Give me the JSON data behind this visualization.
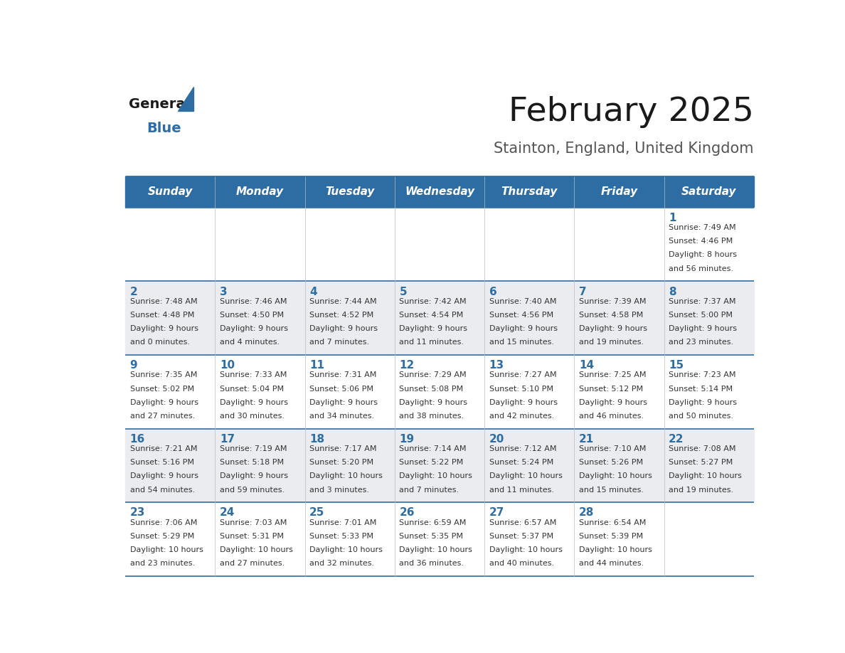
{
  "title": "February 2025",
  "subtitle": "Stainton, England, United Kingdom",
  "days_of_week": [
    "Sunday",
    "Monday",
    "Tuesday",
    "Wednesday",
    "Thursday",
    "Friday",
    "Saturday"
  ],
  "header_bg": "#2E6DA4",
  "header_text": "#FFFFFF",
  "cell_bg_light": "#FFFFFF",
  "cell_bg_dark": "#EAECF0",
  "border_color": "#2E6DA4",
  "day_number_color": "#2E6DA4",
  "text_color": "#333333",
  "calendar_data": [
    [
      {
        "day": null,
        "sunrise": null,
        "sunset": null,
        "daylight": null
      },
      {
        "day": null,
        "sunrise": null,
        "sunset": null,
        "daylight": null
      },
      {
        "day": null,
        "sunrise": null,
        "sunset": null,
        "daylight": null
      },
      {
        "day": null,
        "sunrise": null,
        "sunset": null,
        "daylight": null
      },
      {
        "day": null,
        "sunrise": null,
        "sunset": null,
        "daylight": null
      },
      {
        "day": null,
        "sunrise": null,
        "sunset": null,
        "daylight": null
      },
      {
        "day": 1,
        "sunrise": "7:49 AM",
        "sunset": "4:46 PM",
        "daylight": "8 hours and 56 minutes."
      }
    ],
    [
      {
        "day": 2,
        "sunrise": "7:48 AM",
        "sunset": "4:48 PM",
        "daylight": "9 hours and 0 minutes."
      },
      {
        "day": 3,
        "sunrise": "7:46 AM",
        "sunset": "4:50 PM",
        "daylight": "9 hours and 4 minutes."
      },
      {
        "day": 4,
        "sunrise": "7:44 AM",
        "sunset": "4:52 PM",
        "daylight": "9 hours and 7 minutes."
      },
      {
        "day": 5,
        "sunrise": "7:42 AM",
        "sunset": "4:54 PM",
        "daylight": "9 hours and 11 minutes."
      },
      {
        "day": 6,
        "sunrise": "7:40 AM",
        "sunset": "4:56 PM",
        "daylight": "9 hours and 15 minutes."
      },
      {
        "day": 7,
        "sunrise": "7:39 AM",
        "sunset": "4:58 PM",
        "daylight": "9 hours and 19 minutes."
      },
      {
        "day": 8,
        "sunrise": "7:37 AM",
        "sunset": "5:00 PM",
        "daylight": "9 hours and 23 minutes."
      }
    ],
    [
      {
        "day": 9,
        "sunrise": "7:35 AM",
        "sunset": "5:02 PM",
        "daylight": "9 hours and 27 minutes."
      },
      {
        "day": 10,
        "sunrise": "7:33 AM",
        "sunset": "5:04 PM",
        "daylight": "9 hours and 30 minutes."
      },
      {
        "day": 11,
        "sunrise": "7:31 AM",
        "sunset": "5:06 PM",
        "daylight": "9 hours and 34 minutes."
      },
      {
        "day": 12,
        "sunrise": "7:29 AM",
        "sunset": "5:08 PM",
        "daylight": "9 hours and 38 minutes."
      },
      {
        "day": 13,
        "sunrise": "7:27 AM",
        "sunset": "5:10 PM",
        "daylight": "9 hours and 42 minutes."
      },
      {
        "day": 14,
        "sunrise": "7:25 AM",
        "sunset": "5:12 PM",
        "daylight": "9 hours and 46 minutes."
      },
      {
        "day": 15,
        "sunrise": "7:23 AM",
        "sunset": "5:14 PM",
        "daylight": "9 hours and 50 minutes."
      }
    ],
    [
      {
        "day": 16,
        "sunrise": "7:21 AM",
        "sunset": "5:16 PM",
        "daylight": "9 hours and 54 minutes."
      },
      {
        "day": 17,
        "sunrise": "7:19 AM",
        "sunset": "5:18 PM",
        "daylight": "9 hours and 59 minutes."
      },
      {
        "day": 18,
        "sunrise": "7:17 AM",
        "sunset": "5:20 PM",
        "daylight": "10 hours and 3 minutes."
      },
      {
        "day": 19,
        "sunrise": "7:14 AM",
        "sunset": "5:22 PM",
        "daylight": "10 hours and 7 minutes."
      },
      {
        "day": 20,
        "sunrise": "7:12 AM",
        "sunset": "5:24 PM",
        "daylight": "10 hours and 11 minutes."
      },
      {
        "day": 21,
        "sunrise": "7:10 AM",
        "sunset": "5:26 PM",
        "daylight": "10 hours and 15 minutes."
      },
      {
        "day": 22,
        "sunrise": "7:08 AM",
        "sunset": "5:27 PM",
        "daylight": "10 hours and 19 minutes."
      }
    ],
    [
      {
        "day": 23,
        "sunrise": "7:06 AM",
        "sunset": "5:29 PM",
        "daylight": "10 hours and 23 minutes."
      },
      {
        "day": 24,
        "sunrise": "7:03 AM",
        "sunset": "5:31 PM",
        "daylight": "10 hours and 27 minutes."
      },
      {
        "day": 25,
        "sunrise": "7:01 AM",
        "sunset": "5:33 PM",
        "daylight": "10 hours and 32 minutes."
      },
      {
        "day": 26,
        "sunrise": "6:59 AM",
        "sunset": "5:35 PM",
        "daylight": "10 hours and 36 minutes."
      },
      {
        "day": 27,
        "sunrise": "6:57 AM",
        "sunset": "5:37 PM",
        "daylight": "10 hours and 40 minutes."
      },
      {
        "day": 28,
        "sunrise": "6:54 AM",
        "sunset": "5:39 PM",
        "daylight": "10 hours and 44 minutes."
      },
      {
        "day": null,
        "sunrise": null,
        "sunset": null,
        "daylight": null
      }
    ]
  ]
}
